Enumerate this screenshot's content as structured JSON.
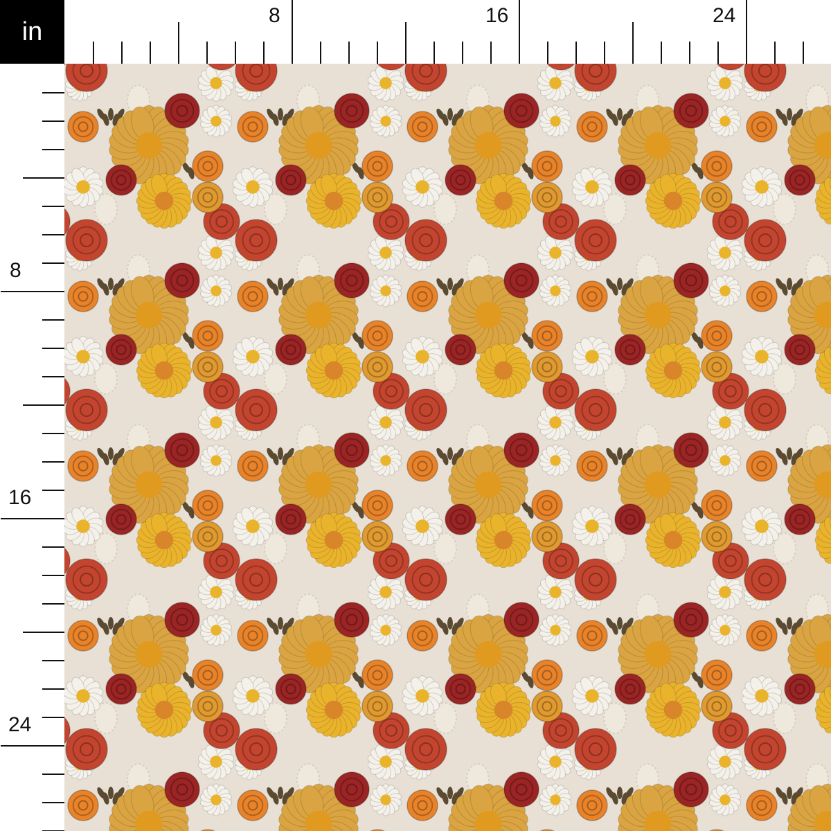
{
  "ruler": {
    "unit": "in",
    "top_labels": [
      "8",
      "16",
      "24"
    ],
    "left_labels": [
      "8",
      "16",
      "24"
    ]
  },
  "swatch": {
    "description_icon": "floral-embroidery-pattern",
    "colors": {
      "background": "#e8e0d4",
      "rose": "#c4452f",
      "dark_red": "#9b2424",
      "orange": "#e8832a",
      "yellow": "#eab32c",
      "white": "#f4f1ea",
      "leaf": "#5a4a32",
      "wheat": "#d9a441"
    }
  }
}
